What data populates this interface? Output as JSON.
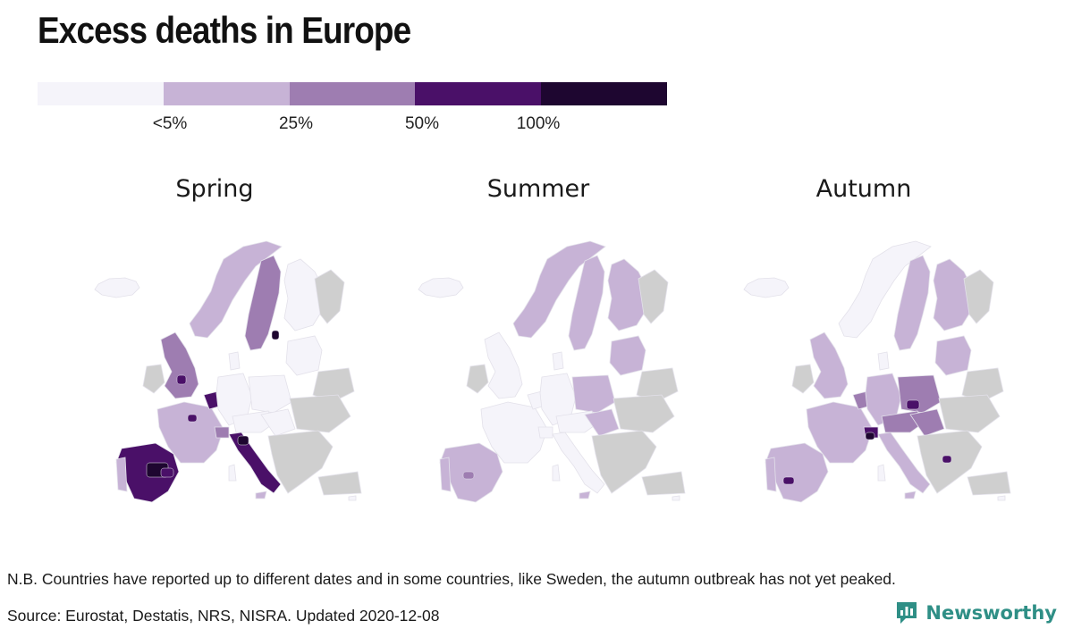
{
  "title": "Excess deaths in Europe",
  "legend": {
    "colors": [
      "#f5f4fa",
      "#c7b3d6",
      "#9e7db1",
      "#4a1068",
      "#1e0630"
    ],
    "ticks": [
      "<5%",
      "25%",
      "50%",
      "100%"
    ]
  },
  "maps": [
    {
      "label": "Spring",
      "key": "spring"
    },
    {
      "label": "Summer",
      "key": "summer"
    },
    {
      "label": "Autumn",
      "key": "autumn"
    }
  ],
  "colors": {
    "no_data": "#cfcfcf",
    "region_border": "#e3e1ea"
  },
  "footer": {
    "note": "N.B. Countries have reported up to different dates and in some countries, like Sweden, the autumn outbreak has not yet peaked.",
    "source": "Source: Eurostat, Destatis, NRS, NISRA. Updated 2020-12-08",
    "brand": "Newsworthy",
    "brand_color": "#2f8f86",
    "brand_icon": "bar-chart-speech-bubble-icon"
  }
}
